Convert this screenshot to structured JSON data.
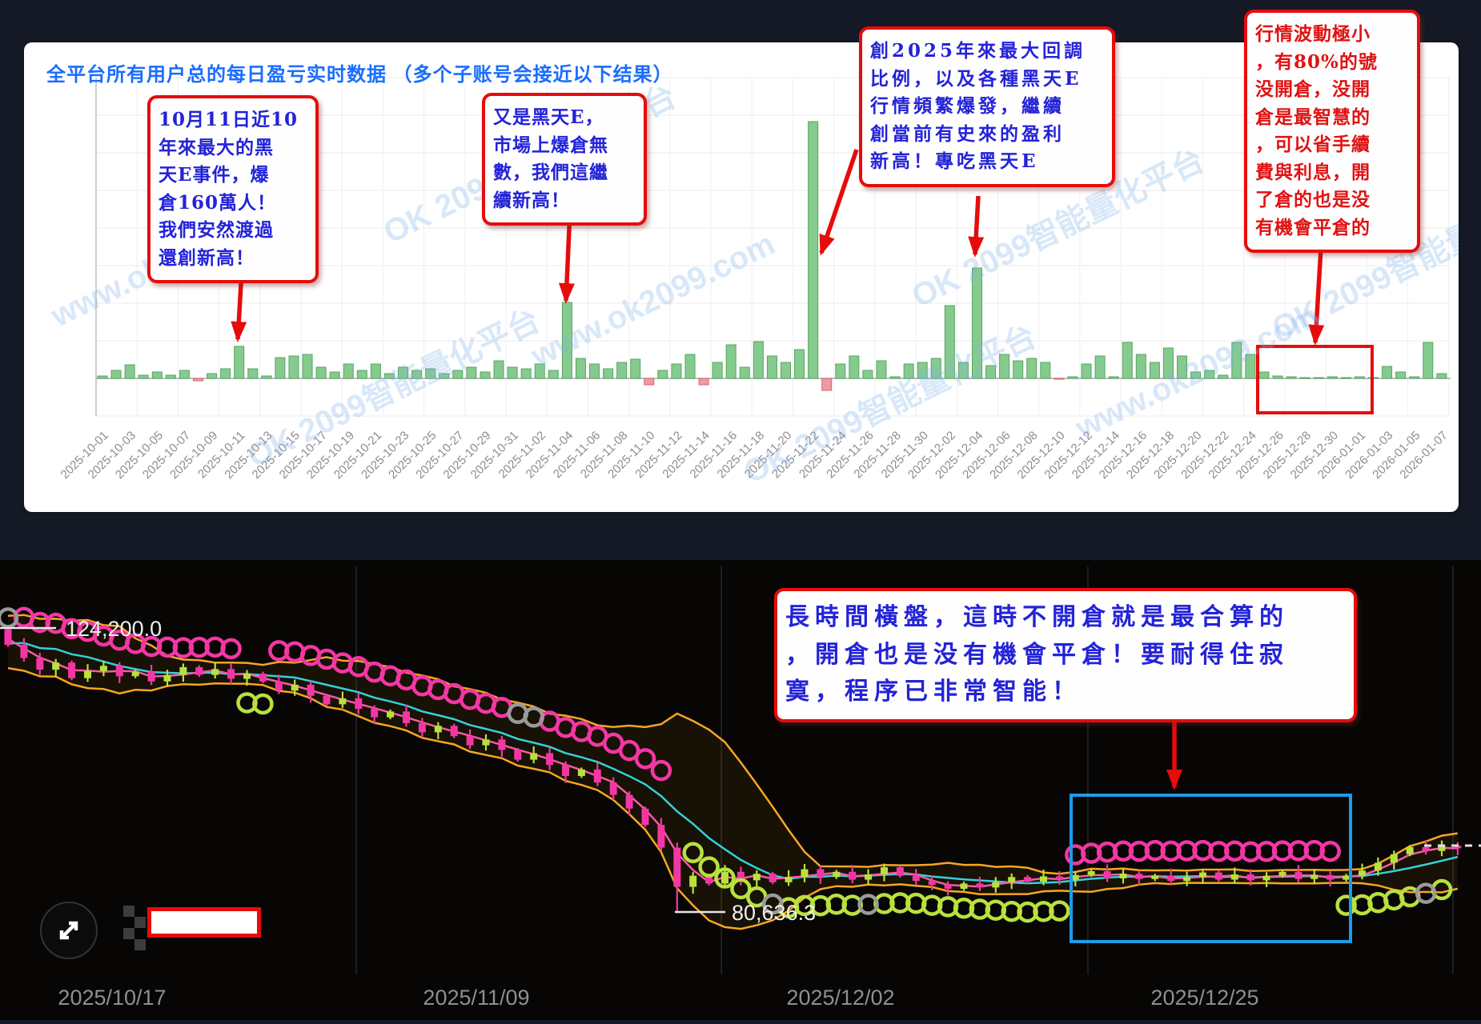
{
  "page": {
    "background": "#141925"
  },
  "watermark": {
    "texts": [
      "www.ok2099.com",
      "OK 2099智能量化平台"
    ]
  },
  "top_panel": {
    "annotations": [
      {
        "text": "10月11日近10\n年來最大的黑\n天E事件，爆\n倉160萬人！\n我們安然渡過\n還創新高！",
        "color": "blue"
      },
      {
        "text": "又是黑天E，\n市場上爆倉無\n數，我們這繼\n續新高！",
        "color": "blue"
      },
      {
        "text": "創2025年來最大回調\n比例，以及各種黑天E\n行情頻繁爆發，繼續\n創當前有史來的盈利\n新高！專吃黑天E",
        "color": "blue"
      },
      {
        "text": "行情波動極小\n，有80%的號\n没開倉，没開\n倉是最智慧的\n，可以省手續\n費與利息，開\n了倉的也是没\n有機會平倉的",
        "color": "red"
      }
    ]
  },
  "bottom_panel": {
    "annotation": "長時間橫盤，這時不開倉就是最合算的\n，開倉也是没有機會平倉！要耐得住寂\n寞，程序已非常智能！"
  },
  "chart_data": [
    {
      "type": "bar",
      "title": "全平台所有用户总的每日盈亏实时数据 （多个子账号会接近以下结果）",
      "xlabel": "",
      "ylabel": "",
      "grid": true,
      "x_start": "2025-10-01",
      "x_end": "2026-01-07",
      "x_tick_labels": [
        "2025-10-01",
        "2025-10-03",
        "2025-10-05",
        "2025-10-07",
        "2025-10-09",
        "2025-10-11",
        "2025-10-13",
        "2025-10-15",
        "2025-10-17",
        "2025-10-19",
        "2025-10-21",
        "2025-10-23",
        "2025-10-25",
        "2025-10-27",
        "2025-10-29",
        "2025-10-31",
        "2025-11-02",
        "2025-11-04",
        "2025-11-06",
        "2025-11-08",
        "2025-11-10",
        "2025-11-12",
        "2025-11-14",
        "2025-11-16",
        "2025-11-18",
        "2025-11-20",
        "2025-11-22",
        "2025-11-24",
        "2025-11-26",
        "2025-11-28",
        "2025-11-30",
        "2025-12-02",
        "2025-12-04",
        "2025-12-06",
        "2025-12-08",
        "2025-12-10",
        "2025-12-12",
        "2025-12-14",
        "2025-12-16",
        "2025-12-18",
        "2025-12-20",
        "2025-12-22",
        "2025-12-24",
        "2025-12-26",
        "2025-12-28",
        "2025-12-30",
        "2026-01-01",
        "2026-01-03",
        "2026-01-05",
        "2026-01-07"
      ],
      "values": [
        3,
        10,
        17,
        4,
        8,
        4,
        10,
        -3,
        6,
        12,
        40,
        12,
        3,
        26,
        28,
        30,
        14,
        8,
        18,
        10,
        18,
        6,
        14,
        10,
        12,
        6,
        10,
        14,
        8,
        22,
        14,
        12,
        18,
        10,
        95,
        25,
        18,
        12,
        20,
        24,
        -8,
        10,
        18,
        30,
        -8,
        20,
        42,
        14,
        46,
        28,
        20,
        36,
        321,
        -15,
        18,
        28,
        10,
        22,
        2,
        18,
        20,
        25,
        91,
        20,
        138,
        16,
        30,
        22,
        25,
        20,
        -1,
        2,
        18,
        28,
        2,
        45,
        30,
        20,
        38,
        28,
        8,
        10,
        4,
        45,
        30,
        8,
        3,
        2,
        1,
        1,
        2,
        1,
        2,
        1,
        15,
        8,
        2,
        45,
        6
      ],
      "bar_colors": {
        "positive": "#86cb8e",
        "negative": "#ee9aa2"
      }
    },
    {
      "type": "candlestick",
      "x_tick_labels": [
        "2025/10/17",
        "2025/11/09",
        "2025/12/02",
        "2025/12/25"
      ],
      "price_label_high": "124,200.0",
      "price_label_low": "80,636.3",
      "price_high_k": 124.2,
      "price_low_k": 80.6363,
      "open_first_k": 124.0,
      "closes_k": [
        121.6,
        119.6,
        117.8,
        118.9,
        116.5,
        117.6,
        118.4,
        116.8,
        117.5,
        116.0,
        117.0,
        118.2,
        117.0,
        117.9,
        116.4,
        117.2,
        116.0,
        114.6,
        115.5,
        113.8,
        112.5,
        113.4,
        111.8,
        110.5,
        111.4,
        109.6,
        108.2,
        109.2,
        107.6,
        106.2,
        107.1,
        105.5,
        104.0,
        105.0,
        103.2,
        101.5,
        102.5,
        100.5,
        98.6,
        96.5,
        94.0,
        90.5,
        84.5,
        86.2,
        85.0,
        86.8,
        85.5,
        86.5,
        85.2,
        86.0,
        87.2,
        86.0,
        86.8,
        85.6,
        86.4,
        87.5,
        86.2,
        85.4,
        84.8,
        84.2,
        85.0,
        84.4,
        85.2,
        86.0,
        85.3,
        86.1,
        85.6,
        86.3,
        86.9,
        85.8,
        86.5,
        85.7,
        86.2,
        85.4,
        86.0,
        86.7,
        85.6,
        86.4,
        85.5,
        86.2,
        86.8,
        85.7,
        86.3,
        85.6,
        86.2,
        87.0,
        88.2,
        89.5,
        90.6,
        90.0,
        90.8,
        90.4
      ],
      "high_override_k": {
        "0": 124.2
      },
      "low_override_k": {
        "42": 80.6363
      },
      "markers": {
        "pink_above": [
          1,
          2,
          3,
          4,
          5,
          6,
          7,
          8,
          9,
          10,
          11,
          12,
          13,
          14,
          17,
          18,
          19,
          20,
          21,
          22,
          23,
          24,
          25,
          26,
          27,
          28,
          29,
          30,
          31,
          34,
          35,
          36,
          37,
          38,
          39,
          40,
          41,
          67,
          68,
          69,
          70,
          71,
          72,
          73,
          74,
          75,
          76,
          77,
          78,
          79,
          80,
          81,
          82,
          83
        ],
        "green_below": [
          15,
          16,
          43,
          44,
          45,
          46,
          47,
          49,
          50,
          51,
          52,
          53,
          55,
          56,
          57,
          58,
          59,
          60,
          61,
          62,
          63,
          64,
          65,
          66,
          84,
          85,
          86,
          87,
          88,
          90
        ],
        "gray_above": [
          0,
          32,
          33
        ],
        "gray_below": [
          48,
          54,
          89
        ]
      },
      "colors": {
        "bull": "#b9e13d",
        "bear": "#f436a5",
        "band": "#f6a623",
        "mid_line": "#35d0d8",
        "fast_line": "#f35ba4",
        "gray_marker": "#9a9a9a",
        "blue_box": "#1e9be9"
      }
    }
  ]
}
